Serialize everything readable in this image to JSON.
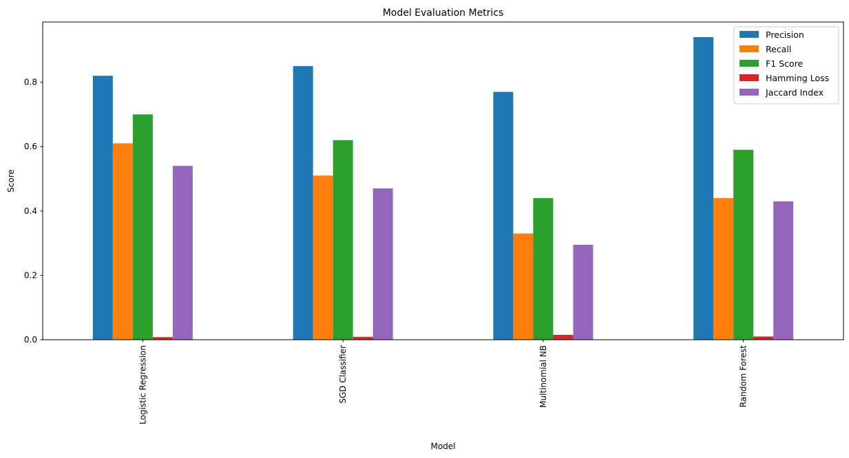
{
  "chart_data": {
    "type": "bar",
    "title": "Model Evaluation Metrics",
    "xlabel": "Model",
    "ylabel": "Score",
    "categories": [
      "Logistic Regression",
      "SGD Classifier",
      "Multinomial NB",
      "Random Forest"
    ],
    "series": [
      {
        "name": "Precision",
        "color": "#1f77b4",
        "values": [
          0.82,
          0.85,
          0.77,
          0.94
        ]
      },
      {
        "name": "Recall",
        "color": "#ff7f0e",
        "values": [
          0.61,
          0.51,
          0.33,
          0.44
        ]
      },
      {
        "name": "F1 Score",
        "color": "#2ca02c",
        "values": [
          0.7,
          0.62,
          0.44,
          0.59
        ]
      },
      {
        "name": "Hamming Loss",
        "color": "#d62728",
        "values": [
          0.008,
          0.009,
          0.015,
          0.01
        ]
      },
      {
        "name": "Jaccard Index",
        "color": "#9467bd",
        "values": [
          0.54,
          0.47,
          0.295,
          0.43
        ]
      }
    ],
    "ylim": [
      0,
      0.987
    ],
    "yticks": [
      0.0,
      0.2,
      0.4,
      0.6,
      0.8
    ],
    "ytick_labels": [
      "0.0",
      "0.2",
      "0.4",
      "0.6",
      "0.8"
    ],
    "grid": false,
    "legend_position": "top-right",
    "xtick_rotation": "vertical"
  }
}
